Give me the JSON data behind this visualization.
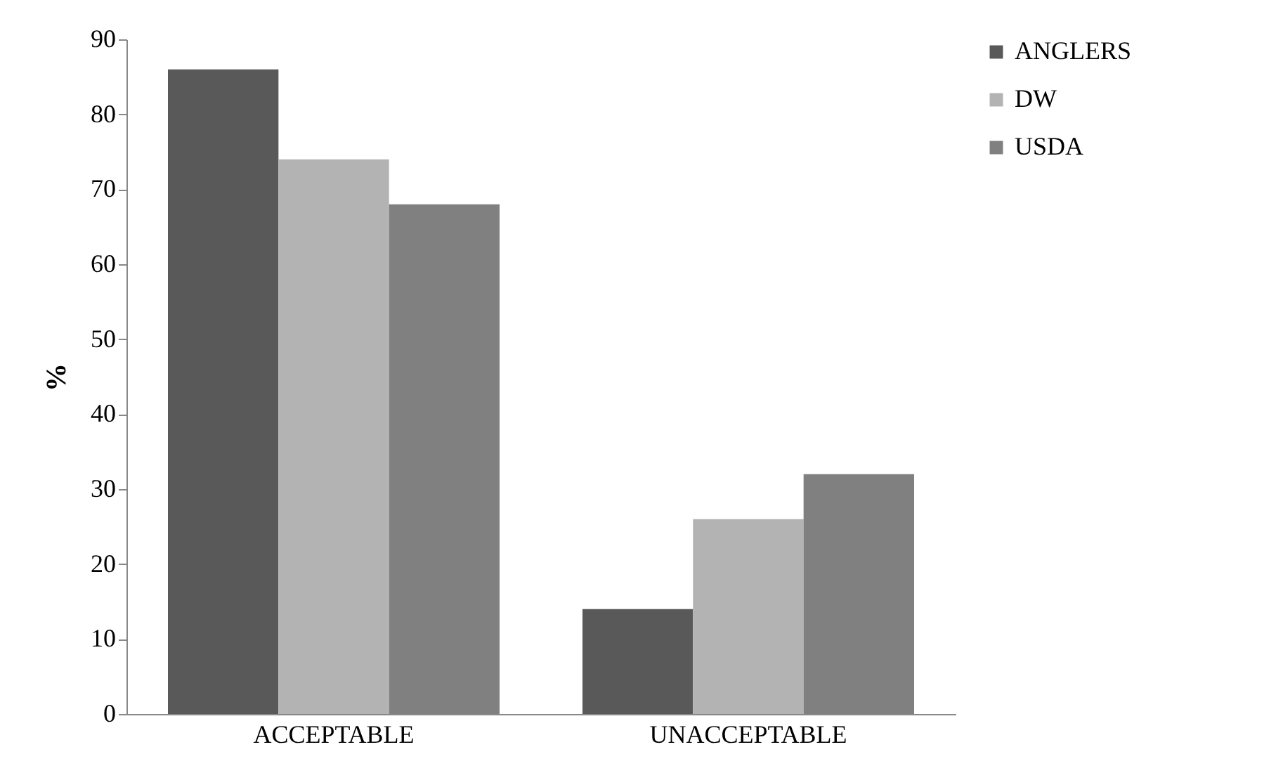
{
  "chart_data": {
    "type": "bar",
    "ylabel": "%",
    "categories": [
      "ACCEPTABLE",
      "UNACCEPTABLE"
    ],
    "series": [
      {
        "name": "ANGLERS",
        "color": "#595959",
        "values": [
          86,
          14
        ]
      },
      {
        "name": "DW",
        "color": "#b3b3b3",
        "values": [
          74,
          26
        ]
      },
      {
        "name": "USDA",
        "color": "#808080",
        "values": [
          68,
          32
        ]
      }
    ],
    "ylim": [
      0,
      90
    ],
    "yticks": [
      0,
      10,
      20,
      30,
      40,
      50,
      60,
      70,
      80,
      90
    ],
    "grid": false,
    "legend": "right"
  }
}
